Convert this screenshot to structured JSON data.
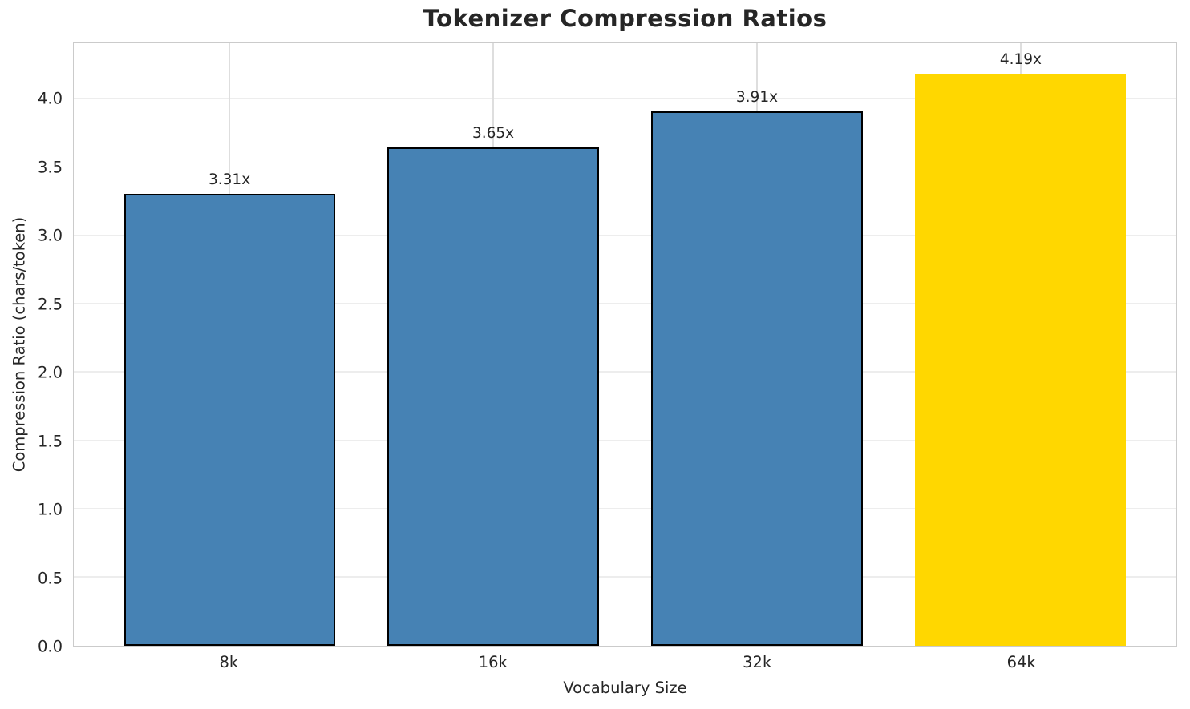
{
  "chart_data": {
    "type": "bar",
    "title": "Tokenizer Compression Ratios",
    "xlabel": "Vocabulary Size",
    "ylabel": "Compression Ratio (chars/token)",
    "categories": [
      "8k",
      "16k",
      "32k",
      "64k"
    ],
    "values": [
      3.31,
      3.65,
      3.91,
      4.19
    ],
    "bar_labels": [
      "3.31x",
      "3.65x",
      "3.91x",
      "4.19x"
    ],
    "bar_colors": [
      "#4682B4",
      "#4682B4",
      "#4682B4",
      "#FFD700"
    ],
    "bar_edge_colors": [
      "#000000",
      "#000000",
      "#000000",
      "none"
    ],
    "highlighted_category": "64k",
    "ylim": [
      0,
      4.41
    ],
    "yticks": [
      0,
      0.5,
      1,
      1.5,
      2,
      2.5,
      3,
      3.5,
      4
    ],
    "ytick_labels": [
      "0.0",
      "0.5",
      "1.0",
      "1.5",
      "2.0",
      "2.5",
      "3.0",
      "3.5",
      "4.0"
    ],
    "bar_width_fraction": 0.8,
    "grid": true,
    "legend": "none",
    "colors": {
      "grid_horizontal": "#ededed",
      "grid_vertical": "#dedede",
      "spine": "#cbcbcb",
      "text": "#262626",
      "background": "#ffffff"
    }
  }
}
